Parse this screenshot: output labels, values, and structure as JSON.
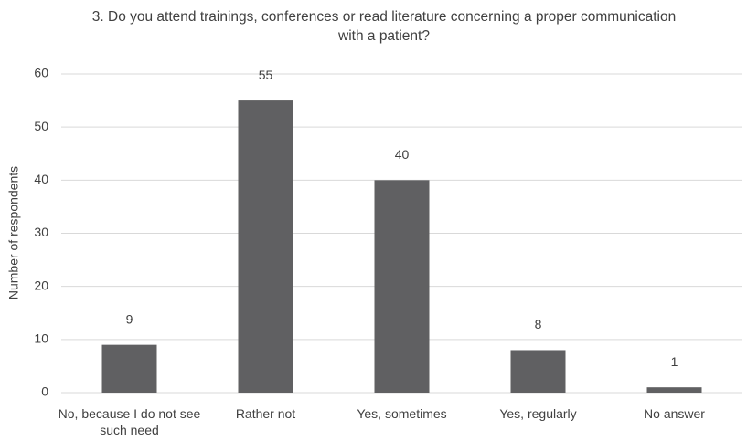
{
  "chart_data": {
    "type": "bar",
    "title": "3. Do you attend trainings, conferences or read literature concerning a proper communication with a patient?",
    "ylabel": "Number of respondents",
    "categories": [
      "No, because I do not see such need",
      "Rather not",
      "Yes, sometimes",
      "Yes, regularly",
      "No answer"
    ],
    "values": [
      9,
      55,
      40,
      8,
      1
    ],
    "color": "#606062",
    "ylim": [
      0,
      60
    ],
    "yticks": [
      0,
      10,
      20,
      30,
      40,
      50,
      60
    ],
    "grid": true
  }
}
